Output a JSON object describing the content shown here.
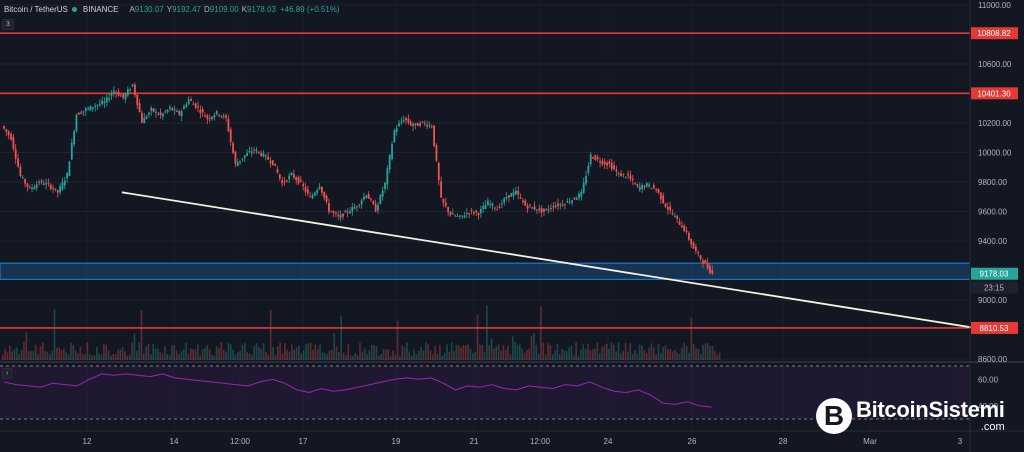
{
  "header": {
    "symbol": "Bitcoin / TetherUS",
    "exchange": "BINANCE",
    "open_label": "A",
    "open": "9130.07",
    "high_label": "Y",
    "high": "9192.47",
    "low_label": "D",
    "low": "9109.00",
    "close_label": "K",
    "close": "9178.03",
    "change": "+46.89 (+0.51%)"
  },
  "indicator_badges": [
    "3"
  ],
  "rsi_badge": "›",
  "price_axis": {
    "ticks": [
      "11000.00",
      "10600.00",
      "10200.00",
      "10000.00",
      "9800.00",
      "9600.00",
      "9400.00",
      "9000.00",
      "8600.00"
    ],
    "level_labels": [
      "10808.82",
      "10401.30",
      "9178.03",
      "23:15",
      "8810.53"
    ]
  },
  "rsi_axis": {
    "ticks": [
      "60.00",
      "40.00"
    ]
  },
  "time_axis": {
    "labels": [
      "12",
      "14",
      "12:00",
      "17",
      "19",
      "21",
      "12:00",
      "24",
      "26",
      "28",
      "Mar",
      "3"
    ]
  },
  "logo": {
    "text": "BitcoinSistemi",
    "sub": ".com",
    "glyph": "B"
  },
  "colors": {
    "background": "#131722",
    "up": "#26a69a",
    "down": "#ef5350",
    "resistance": "#e53935",
    "support_zone": "#1e88e5",
    "trendline": "#f5f0e1",
    "rsi": "#7b1fa2",
    "current_price": "#26a69a"
  },
  "chart_data": {
    "type": "candlestick",
    "symbol": "Bitcoin / TetherUS",
    "timeframe_ticks": [
      "12",
      "14",
      "12:00",
      "17",
      "19",
      "21",
      "12:00",
      "24",
      "26",
      "28",
      "Mar",
      "3"
    ],
    "y_range": [
      8600,
      11000
    ],
    "price_path": [
      [
        0,
        10180
      ],
      [
        1,
        10100
      ],
      [
        2,
        9840
      ],
      [
        3,
        9750
      ],
      [
        4,
        9800
      ],
      [
        5,
        9780
      ],
      [
        6,
        9730
      ],
      [
        7,
        9850
      ],
      [
        8,
        10260
      ],
      [
        9,
        10290
      ],
      [
        10,
        10320
      ],
      [
        11,
        10340
      ],
      [
        12,
        10420
      ],
      [
        13,
        10370
      ],
      [
        14,
        10460
      ],
      [
        15,
        10210
      ],
      [
        16,
        10290
      ],
      [
        17,
        10250
      ],
      [
        18,
        10300
      ],
      [
        19,
        10260
      ],
      [
        20,
        10360
      ],
      [
        21,
        10300
      ],
      [
        22,
        10230
      ],
      [
        23,
        10270
      ],
      [
        24,
        10230
      ],
      [
        25,
        9920
      ],
      [
        26,
        9980
      ],
      [
        27,
        10020
      ],
      [
        28,
        9980
      ],
      [
        29,
        9930
      ],
      [
        30,
        9790
      ],
      [
        31,
        9850
      ],
      [
        32,
        9790
      ],
      [
        33,
        9690
      ],
      [
        34,
        9780
      ],
      [
        35,
        9610
      ],
      [
        36,
        9560
      ],
      [
        37,
        9600
      ],
      [
        38,
        9640
      ],
      [
        39,
        9720
      ],
      [
        40,
        9610
      ],
      [
        41,
        9790
      ],
      [
        42,
        10150
      ],
      [
        43,
        10230
      ],
      [
        44,
        10180
      ],
      [
        45,
        10200
      ],
      [
        46,
        10180
      ],
      [
        47,
        9680
      ],
      [
        48,
        9580
      ],
      [
        49,
        9560
      ],
      [
        50,
        9600
      ],
      [
        51,
        9590
      ],
      [
        52,
        9660
      ],
      [
        53,
        9620
      ],
      [
        54,
        9700
      ],
      [
        55,
        9730
      ],
      [
        56,
        9640
      ],
      [
        57,
        9620
      ],
      [
        58,
        9600
      ],
      [
        59,
        9640
      ],
      [
        60,
        9650
      ],
      [
        61,
        9680
      ],
      [
        62,
        9720
      ],
      [
        63,
        9980
      ],
      [
        64,
        9940
      ],
      [
        65,
        9920
      ],
      [
        66,
        9850
      ],
      [
        67,
        9840
      ],
      [
        68,
        9760
      ],
      [
        69,
        9780
      ],
      [
        70,
        9750
      ],
      [
        71,
        9640
      ],
      [
        72,
        9560
      ],
      [
        73,
        9480
      ],
      [
        74,
        9350
      ],
      [
        75,
        9260
      ],
      [
        76,
        9178
      ]
    ],
    "horizontal_levels": [
      {
        "price": 10808.82,
        "color": "resistance"
      },
      {
        "price": 10401.3,
        "color": "resistance"
      },
      {
        "price": 8810.53,
        "color": "resistance"
      }
    ],
    "support_zone": {
      "from": 9140,
      "to": 9250
    },
    "trendline": {
      "from_time": 11.0,
      "from_price": 9730,
      "to_time": 30.0,
      "to_price": 8810.53
    },
    "last_price": 9178.03,
    "countdown": "23:15",
    "volume_overlay": true,
    "rsi": {
      "ticks": [
        60,
        40
      ],
      "band": [
        30,
        70
      ],
      "values": [
        58,
        56,
        55,
        54,
        57,
        56,
        55,
        60,
        64,
        63,
        64,
        63,
        62,
        64,
        61,
        60,
        59,
        58,
        57,
        56,
        55,
        58,
        60,
        57,
        52,
        50,
        53,
        51,
        52,
        54,
        56,
        58,
        60,
        61,
        60,
        61,
        57,
        52,
        55,
        54,
        56,
        53,
        52,
        55,
        54,
        53,
        56,
        55,
        58,
        54,
        51,
        50,
        52,
        48,
        42,
        41,
        43,
        40,
        39
      ]
    }
  }
}
